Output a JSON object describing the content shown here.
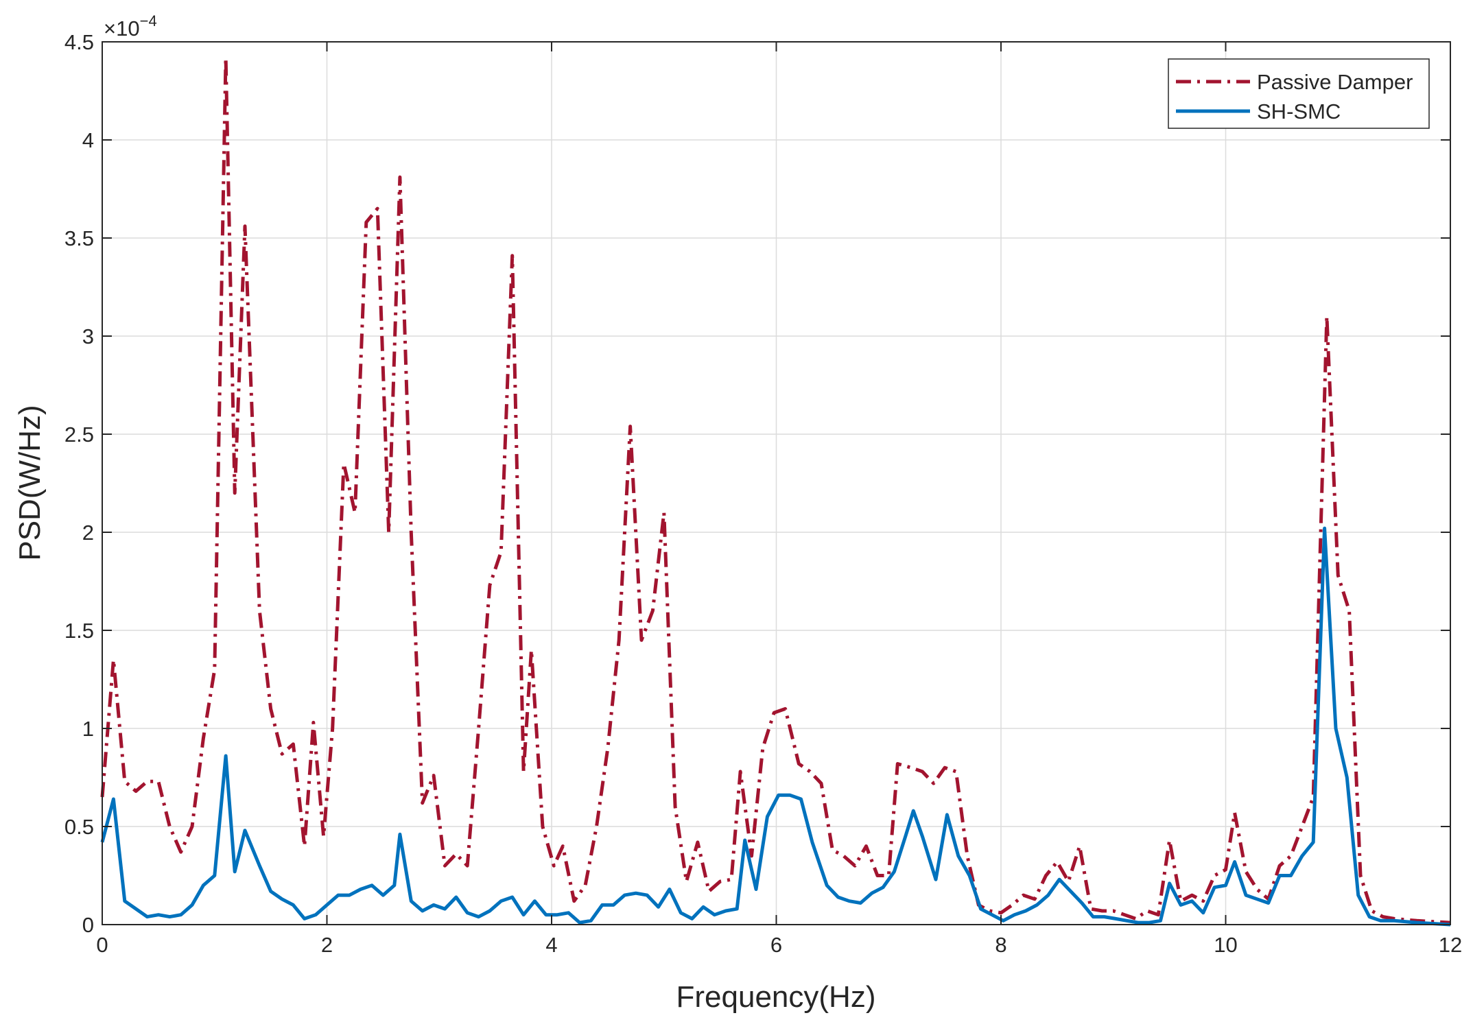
{
  "chart_data": {
    "type": "line",
    "xlabel": "Frequency(Hz)",
    "ylabel": "PSD(W/Hz)",
    "y_multiplier_label": "×10",
    "y_multiplier_exponent": "−4",
    "xlim": [
      0,
      12
    ],
    "ylim": [
      0,
      4.5
    ],
    "x_ticks": [
      0,
      2,
      4,
      6,
      8,
      10,
      12
    ],
    "x_tick_labels": [
      "0",
      "2",
      "4",
      "6",
      "8",
      "10",
      "12"
    ],
    "y_ticks": [
      0,
      0.5,
      1,
      1.5,
      2,
      2.5,
      3,
      3.5,
      4,
      4.5
    ],
    "y_tick_labels": [
      "0",
      "0.5",
      "1",
      "1.5",
      "2",
      "2.5",
      "3",
      "3.5",
      "4",
      "4.5"
    ],
    "grid": true,
    "legend_position": "top-right",
    "colors": {
      "passive": "#a2142f",
      "smc": "#0072bd",
      "grid": "#dcdcdc",
      "axes": "#262626"
    },
    "series": [
      {
        "name": "Passive Damper",
        "style": "dash-dot",
        "points": [
          [
            0.0,
            0.65
          ],
          [
            0.1,
            1.35
          ],
          [
            0.2,
            0.73
          ],
          [
            0.3,
            0.68
          ],
          [
            0.4,
            0.73
          ],
          [
            0.5,
            0.73
          ],
          [
            0.6,
            0.5
          ],
          [
            0.7,
            0.37
          ],
          [
            0.8,
            0.5
          ],
          [
            0.9,
            0.95
          ],
          [
            1.0,
            1.3
          ],
          [
            1.1,
            4.42
          ],
          [
            1.18,
            2.2
          ],
          [
            1.27,
            3.56
          ],
          [
            1.4,
            1.6
          ],
          [
            1.5,
            1.1
          ],
          [
            1.6,
            0.87
          ],
          [
            1.7,
            0.92
          ],
          [
            1.8,
            0.4
          ],
          [
            1.88,
            1.03
          ],
          [
            1.97,
            0.45
          ],
          [
            2.05,
            1.0
          ],
          [
            2.15,
            2.35
          ],
          [
            2.25,
            2.1
          ],
          [
            2.35,
            3.58
          ],
          [
            2.45,
            3.65
          ],
          [
            2.55,
            2.0
          ],
          [
            2.65,
            3.81
          ],
          [
            2.75,
            2.0
          ],
          [
            2.85,
            0.62
          ],
          [
            2.95,
            0.76
          ],
          [
            3.05,
            0.3
          ],
          [
            3.15,
            0.36
          ],
          [
            3.25,
            0.3
          ],
          [
            3.35,
            1.0
          ],
          [
            3.45,
            1.73
          ],
          [
            3.55,
            1.9
          ],
          [
            3.65,
            3.41
          ],
          [
            3.75,
            0.78
          ],
          [
            3.82,
            1.4
          ],
          [
            3.92,
            0.5
          ],
          [
            4.02,
            0.3
          ],
          [
            4.1,
            0.4
          ],
          [
            4.2,
            0.12
          ],
          [
            4.3,
            0.2
          ],
          [
            4.4,
            0.5
          ],
          [
            4.5,
            0.9
          ],
          [
            4.6,
            1.45
          ],
          [
            4.7,
            2.54
          ],
          [
            4.8,
            1.45
          ],
          [
            4.9,
            1.6
          ],
          [
            5.0,
            2.1
          ],
          [
            5.1,
            0.6
          ],
          [
            5.2,
            0.22
          ],
          [
            5.3,
            0.42
          ],
          [
            5.4,
            0.17
          ],
          [
            5.5,
            0.22
          ],
          [
            5.6,
            0.23
          ],
          [
            5.68,
            0.78
          ],
          [
            5.78,
            0.35
          ],
          [
            5.88,
            0.9
          ],
          [
            5.98,
            1.08
          ],
          [
            6.08,
            1.1
          ],
          [
            6.2,
            0.82
          ],
          [
            6.3,
            0.78
          ],
          [
            6.4,
            0.72
          ],
          [
            6.5,
            0.38
          ],
          [
            6.6,
            0.35
          ],
          [
            6.7,
            0.3
          ],
          [
            6.8,
            0.4
          ],
          [
            6.9,
            0.25
          ],
          [
            7.0,
            0.25
          ],
          [
            7.08,
            0.82
          ],
          [
            7.2,
            0.8
          ],
          [
            7.3,
            0.78
          ],
          [
            7.4,
            0.72
          ],
          [
            7.5,
            0.8
          ],
          [
            7.6,
            0.78
          ],
          [
            7.7,
            0.35
          ],
          [
            7.8,
            0.1
          ],
          [
            7.9,
            0.07
          ],
          [
            8.0,
            0.06
          ],
          [
            8.1,
            0.1
          ],
          [
            8.2,
            0.15
          ],
          [
            8.3,
            0.13
          ],
          [
            8.4,
            0.25
          ],
          [
            8.5,
            0.32
          ],
          [
            8.6,
            0.22
          ],
          [
            8.7,
            0.4
          ],
          [
            8.8,
            0.08
          ],
          [
            8.9,
            0.07
          ],
          [
            9.0,
            0.07
          ],
          [
            9.1,
            0.05
          ],
          [
            9.2,
            0.03
          ],
          [
            9.3,
            0.07
          ],
          [
            9.4,
            0.05
          ],
          [
            9.5,
            0.43
          ],
          [
            9.6,
            0.12
          ],
          [
            9.7,
            0.15
          ],
          [
            9.8,
            0.12
          ],
          [
            9.9,
            0.25
          ],
          [
            10.0,
            0.28
          ],
          [
            10.08,
            0.57
          ],
          [
            10.18,
            0.27
          ],
          [
            10.28,
            0.18
          ],
          [
            10.38,
            0.13
          ],
          [
            10.48,
            0.3
          ],
          [
            10.58,
            0.35
          ],
          [
            10.68,
            0.5
          ],
          [
            10.78,
            0.65
          ],
          [
            10.9,
            3.1
          ],
          [
            11.0,
            1.78
          ],
          [
            11.1,
            1.6
          ],
          [
            11.2,
            0.25
          ],
          [
            11.3,
            0.07
          ],
          [
            11.4,
            0.04
          ],
          [
            11.5,
            0.03
          ],
          [
            11.7,
            0.02
          ],
          [
            12.0,
            0.01
          ]
        ]
      },
      {
        "name": "SH-SMC",
        "style": "solid",
        "points": [
          [
            0.0,
            0.42
          ],
          [
            0.1,
            0.64
          ],
          [
            0.2,
            0.12
          ],
          [
            0.3,
            0.08
          ],
          [
            0.4,
            0.04
          ],
          [
            0.5,
            0.05
          ],
          [
            0.6,
            0.04
          ],
          [
            0.7,
            0.05
          ],
          [
            0.8,
            0.1
          ],
          [
            0.9,
            0.2
          ],
          [
            1.0,
            0.25
          ],
          [
            1.1,
            0.86
          ],
          [
            1.18,
            0.27
          ],
          [
            1.27,
            0.48
          ],
          [
            1.4,
            0.3
          ],
          [
            1.5,
            0.17
          ],
          [
            1.6,
            0.13
          ],
          [
            1.7,
            0.1
          ],
          [
            1.8,
            0.03
          ],
          [
            1.9,
            0.05
          ],
          [
            2.0,
            0.1
          ],
          [
            2.1,
            0.15
          ],
          [
            2.2,
            0.15
          ],
          [
            2.3,
            0.18
          ],
          [
            2.4,
            0.2
          ],
          [
            2.5,
            0.15
          ],
          [
            2.6,
            0.2
          ],
          [
            2.65,
            0.46
          ],
          [
            2.75,
            0.12
          ],
          [
            2.85,
            0.07
          ],
          [
            2.95,
            0.1
          ],
          [
            3.05,
            0.08
          ],
          [
            3.15,
            0.14
          ],
          [
            3.25,
            0.06
          ],
          [
            3.35,
            0.04
          ],
          [
            3.45,
            0.07
          ],
          [
            3.55,
            0.12
          ],
          [
            3.65,
            0.14
          ],
          [
            3.75,
            0.05
          ],
          [
            3.85,
            0.12
          ],
          [
            3.95,
            0.05
          ],
          [
            4.05,
            0.05
          ],
          [
            4.15,
            0.06
          ],
          [
            4.25,
            0.01
          ],
          [
            4.35,
            0.02
          ],
          [
            4.45,
            0.1
          ],
          [
            4.55,
            0.1
          ],
          [
            4.65,
            0.15
          ],
          [
            4.75,
            0.16
          ],
          [
            4.85,
            0.15
          ],
          [
            4.95,
            0.09
          ],
          [
            5.05,
            0.18
          ],
          [
            5.15,
            0.06
          ],
          [
            5.25,
            0.03
          ],
          [
            5.35,
            0.09
          ],
          [
            5.45,
            0.05
          ],
          [
            5.55,
            0.07
          ],
          [
            5.65,
            0.08
          ],
          [
            5.72,
            0.43
          ],
          [
            5.82,
            0.18
          ],
          [
            5.92,
            0.55
          ],
          [
            6.02,
            0.66
          ],
          [
            6.12,
            0.66
          ],
          [
            6.22,
            0.64
          ],
          [
            6.32,
            0.42
          ],
          [
            6.45,
            0.2
          ],
          [
            6.55,
            0.14
          ],
          [
            6.65,
            0.12
          ],
          [
            6.75,
            0.11
          ],
          [
            6.85,
            0.16
          ],
          [
            6.95,
            0.19
          ],
          [
            7.05,
            0.27
          ],
          [
            7.15,
            0.45
          ],
          [
            7.22,
            0.58
          ],
          [
            7.3,
            0.45
          ],
          [
            7.42,
            0.23
          ],
          [
            7.52,
            0.56
          ],
          [
            7.62,
            0.35
          ],
          [
            7.72,
            0.25
          ],
          [
            7.82,
            0.08
          ],
          [
            7.92,
            0.05
          ],
          [
            8.02,
            0.02
          ],
          [
            8.12,
            0.05
          ],
          [
            8.22,
            0.07
          ],
          [
            8.32,
            0.1
          ],
          [
            8.42,
            0.15
          ],
          [
            8.52,
            0.23
          ],
          [
            8.62,
            0.17
          ],
          [
            8.72,
            0.11
          ],
          [
            8.82,
            0.04
          ],
          [
            8.92,
            0.04
          ],
          [
            9.02,
            0.03
          ],
          [
            9.12,
            0.02
          ],
          [
            9.22,
            0.01
          ],
          [
            9.32,
            0.01
          ],
          [
            9.42,
            0.02
          ],
          [
            9.5,
            0.21
          ],
          [
            9.6,
            0.1
          ],
          [
            9.7,
            0.12
          ],
          [
            9.8,
            0.06
          ],
          [
            9.9,
            0.19
          ],
          [
            10.0,
            0.2
          ],
          [
            10.08,
            0.32
          ],
          [
            10.18,
            0.15
          ],
          [
            10.28,
            0.13
          ],
          [
            10.38,
            0.11
          ],
          [
            10.48,
            0.25
          ],
          [
            10.58,
            0.25
          ],
          [
            10.68,
            0.35
          ],
          [
            10.78,
            0.42
          ],
          [
            10.88,
            2.02
          ],
          [
            10.98,
            1.0
          ],
          [
            11.08,
            0.75
          ],
          [
            11.18,
            0.15
          ],
          [
            11.28,
            0.04
          ],
          [
            11.38,
            0.02
          ],
          [
            11.5,
            0.02
          ],
          [
            11.7,
            0.01
          ],
          [
            12.0,
            0.0
          ]
        ]
      }
    ]
  }
}
